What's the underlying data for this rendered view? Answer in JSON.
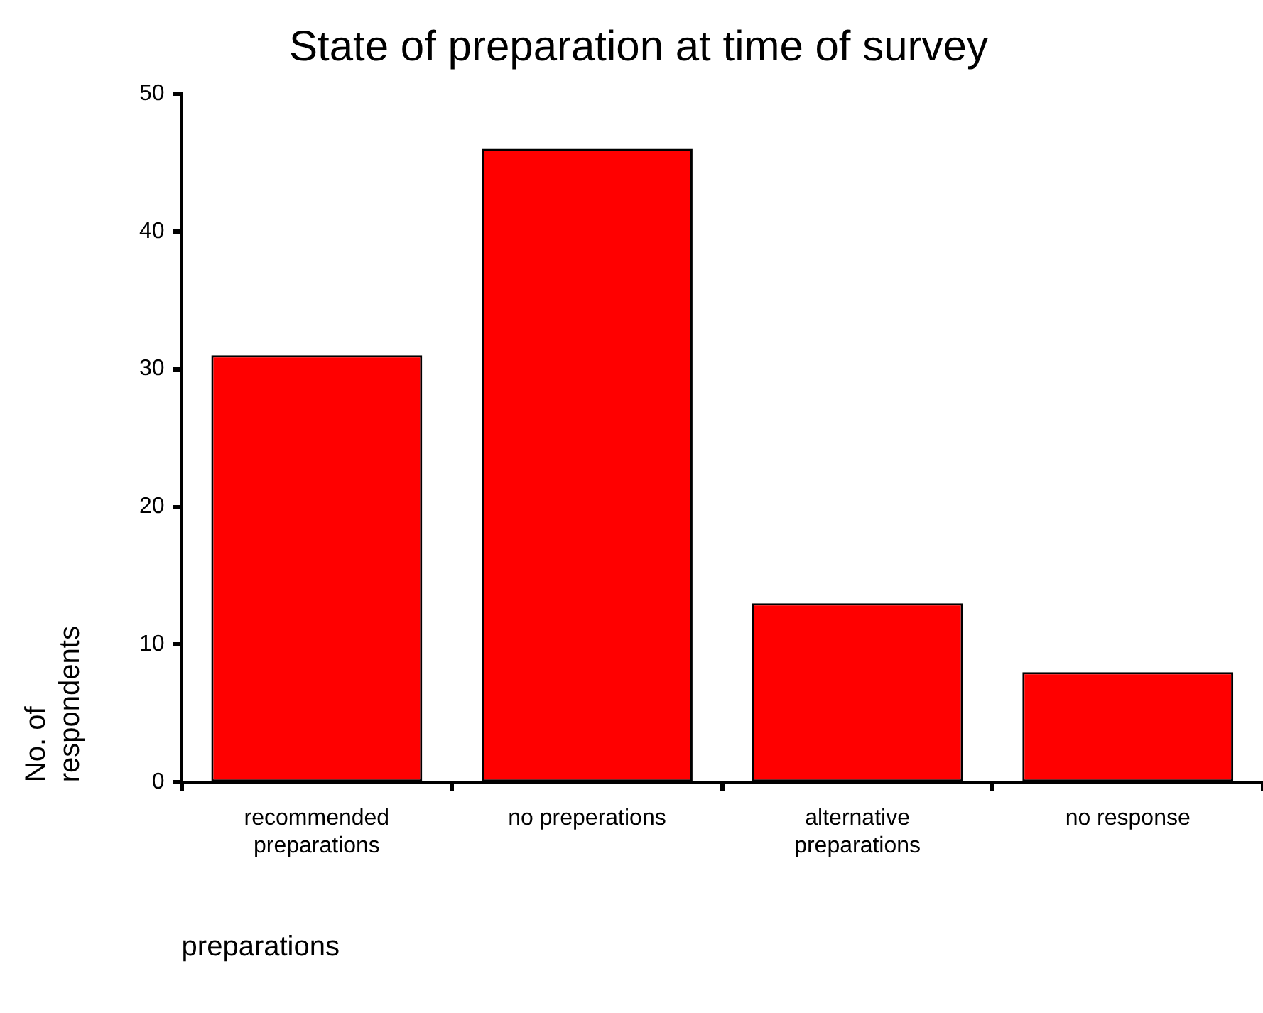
{
  "chart_data": {
    "type": "bar",
    "title": "State of preparation at time of survey",
    "xlabel": "preparations",
    "ylabel": "No. of respondents",
    "categories": [
      "recommended preparations",
      "no preperations",
      "alternative preparations",
      "no response"
    ],
    "values": [
      31,
      46,
      13,
      8
    ],
    "color": "#ff0000",
    "ylim": [
      0,
      50
    ],
    "yticks": [
      0,
      10,
      20,
      30,
      40,
      50
    ],
    "grid": false
  }
}
